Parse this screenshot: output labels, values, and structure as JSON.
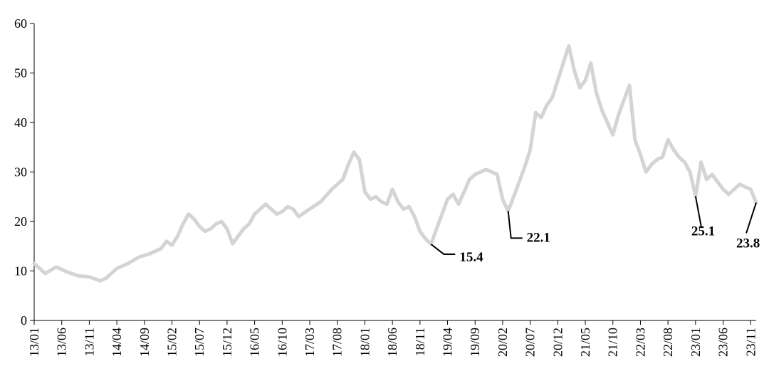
{
  "chart_data": {
    "type": "line",
    "title": "",
    "xlabel": "",
    "ylabel": "",
    "ylim": [
      0,
      60
    ],
    "yticks": [
      0,
      10,
      20,
      30,
      40,
      50,
      60
    ],
    "x_tick_labels": [
      "13/01",
      "13/06",
      "13/11",
      "14/04",
      "14/09",
      "15/02",
      "15/07",
      "15/12",
      "16/05",
      "16/10",
      "17/03",
      "17/08",
      "18/01",
      "18/06",
      "18/11",
      "19/04",
      "19/09",
      "20/02",
      "20/07",
      "20/12",
      "21/05",
      "21/10",
      "22/03",
      "22/08",
      "23/01",
      "23/06",
      "23/11"
    ],
    "x_range": [
      "2013-01",
      "2023-12"
    ],
    "grid": false,
    "legend": "none",
    "series": [
      {
        "color": "#d4d4d4",
        "x": [
          "2013-01",
          "2013-03",
          "2013-05",
          "2013-07",
          "2013-09",
          "2013-11",
          "2014-01",
          "2014-02",
          "2014-03",
          "2014-04",
          "2014-06",
          "2014-08",
          "2014-10",
          "2014-12",
          "2015-01",
          "2015-02",
          "2015-03",
          "2015-04",
          "2015-05",
          "2015-06",
          "2015-07",
          "2015-08",
          "2015-09",
          "2015-10",
          "2015-11",
          "2015-12",
          "2016-01",
          "2016-02",
          "2016-03",
          "2016-04",
          "2016-05",
          "2016-07",
          "2016-08",
          "2016-09",
          "2016-10",
          "2016-11",
          "2016-12",
          "2017-01",
          "2017-03",
          "2017-05",
          "2017-07",
          "2017-09",
          "2017-10",
          "2017-11",
          "2017-12",
          "2018-01",
          "2018-02",
          "2018-03",
          "2018-04",
          "2018-05",
          "2018-06",
          "2018-07",
          "2018-08",
          "2018-09",
          "2018-10",
          "2018-11",
          "2018-12",
          "2019-01",
          "2019-02",
          "2019-03",
          "2019-04",
          "2019-05",
          "2019-06",
          "2019-07",
          "2019-08",
          "2019-09",
          "2019-11",
          "2020-01",
          "2020-02",
          "2020-03",
          "2020-04",
          "2020-05",
          "2020-06",
          "2020-07",
          "2020-08",
          "2020-09",
          "2020-10",
          "2020-11",
          "2020-12",
          "2021-01",
          "2021-02",
          "2021-03",
          "2021-04",
          "2021-05",
          "2021-06",
          "2021-07",
          "2021-08",
          "2021-09",
          "2021-10",
          "2021-11",
          "2021-12",
          "2022-01",
          "2022-02",
          "2022-03",
          "2022-04",
          "2022-05",
          "2022-06",
          "2022-07",
          "2022-08",
          "2022-09",
          "2022-10",
          "2022-11",
          "2022-12",
          "2023-01",
          "2023-02",
          "2023-03",
          "2023-04",
          "2023-05",
          "2023-06",
          "2023-07",
          "2023-08",
          "2023-09",
          "2023-10",
          "2023-11",
          "2023-12"
        ],
        "y": [
          11.5,
          9.5,
          10.8,
          9.8,
          9.0,
          8.8,
          8.0,
          8.5,
          9.5,
          10.5,
          11.5,
          12.8,
          13.5,
          14.5,
          16.0,
          15.2,
          17.0,
          19.5,
          21.5,
          20.5,
          19.0,
          18.0,
          18.5,
          19.5,
          20.0,
          18.5,
          15.5,
          17.0,
          18.5,
          19.5,
          21.5,
          23.5,
          22.5,
          21.5,
          22.0,
          23.0,
          22.5,
          21.0,
          22.5,
          24.0,
          26.5,
          28.5,
          31.5,
          34.0,
          32.5,
          26.0,
          24.5,
          25.0,
          24.0,
          23.5,
          26.5,
          24.0,
          22.5,
          23.0,
          21.0,
          18.0,
          16.5,
          15.4,
          18.5,
          21.5,
          24.5,
          25.5,
          23.5,
          26.0,
          28.5,
          29.5,
          30.5,
          29.5,
          24.5,
          22.1,
          25.0,
          28.0,
          31.0,
          34.5,
          42.0,
          41.0,
          43.5,
          45.0,
          48.5,
          52.0,
          55.5,
          50.5,
          47.0,
          48.5,
          52.0,
          46.0,
          42.5,
          40.0,
          37.5,
          41.5,
          44.5,
          47.5,
          36.5,
          33.5,
          30.0,
          31.5,
          32.5,
          33.0,
          36.5,
          34.5,
          33.0,
          32.0,
          30.0,
          25.1,
          32.0,
          28.5,
          29.5,
          28.0,
          26.5,
          25.5,
          26.5,
          27.5,
          27.0,
          26.5,
          23.8
        ]
      }
    ],
    "annotations": [
      {
        "label": "15.4",
        "x": "2019-01",
        "y": 15.4
      },
      {
        "label": "22.1",
        "x": "2020-03",
        "y": 22.1
      },
      {
        "label": "25.1",
        "x": "2023-01",
        "y": 25.1
      },
      {
        "label": "23.8",
        "x": "2023-12",
        "y": 23.8
      }
    ]
  }
}
